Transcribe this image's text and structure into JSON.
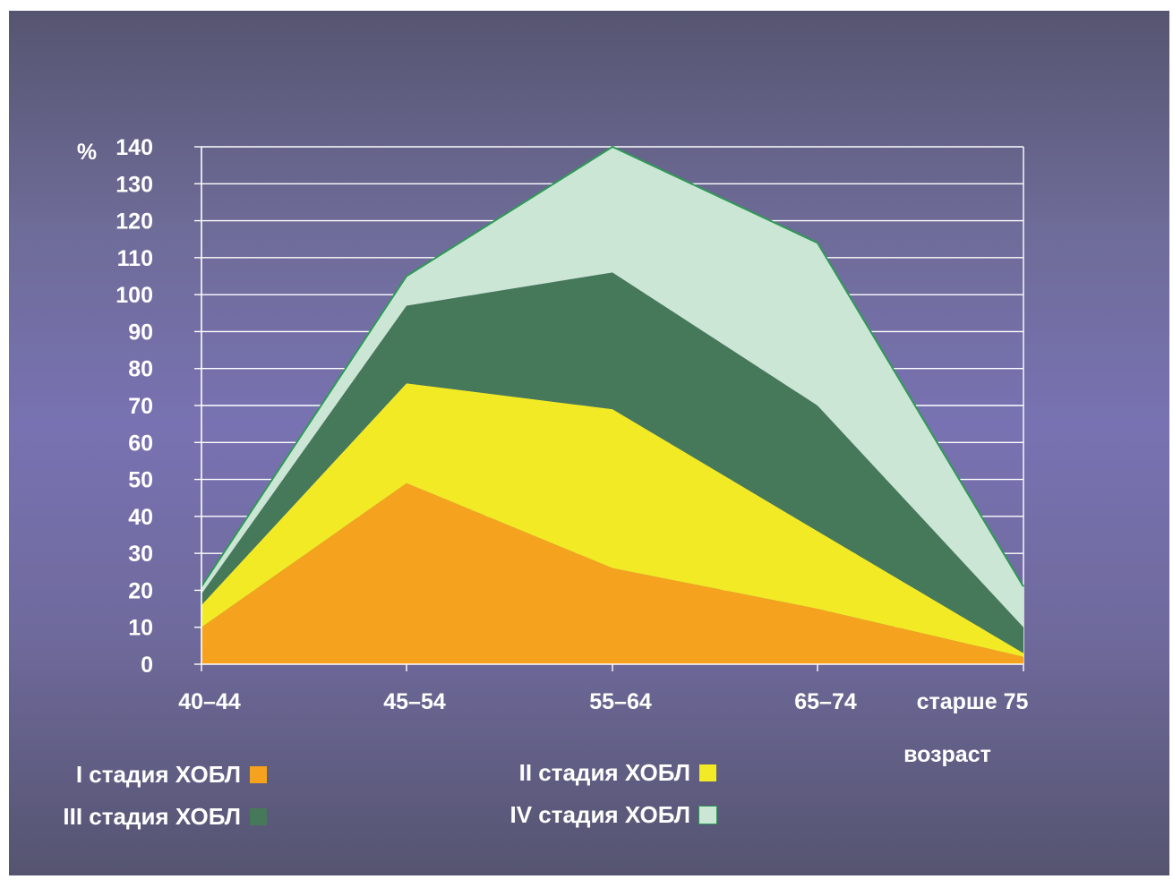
{
  "chart_data": {
    "type": "area",
    "stacked": true,
    "ylabel": "%",
    "xlabel": "возраст",
    "ylim": [
      0,
      140
    ],
    "yticks": [
      0,
      10,
      20,
      30,
      40,
      50,
      60,
      70,
      80,
      90,
      100,
      110,
      120,
      130,
      140
    ],
    "categories": [
      "40–44",
      "45–54",
      "55–64",
      "65–74",
      "старше 75"
    ],
    "grid": true,
    "legend_position": "bottom",
    "series": [
      {
        "name": "I стадия ХОБЛ",
        "values": [
          10,
          49,
          26,
          15,
          2
        ],
        "color": "#f5a31e"
      },
      {
        "name": "II стадия ХОБЛ",
        "values": [
          6,
          27,
          43,
          21,
          1
        ],
        "color": "#f2ea24"
      },
      {
        "name": "III стадия ХОБЛ",
        "values": [
          3,
          21,
          37,
          34,
          7
        ],
        "color": "#46795a"
      },
      {
        "name": "IV стадия ХОБЛ",
        "values": [
          2,
          8,
          34,
          44,
          11
        ],
        "color": "#cce6d6"
      }
    ]
  }
}
